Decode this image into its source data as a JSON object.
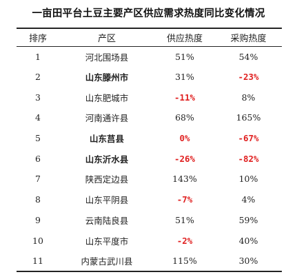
{
  "title": "一亩田平台土豆主要产区供应需求热度同比变化情况",
  "table": {
    "headers": [
      "排序",
      "产区",
      "供应热度",
      "采购热度"
    ],
    "rows": [
      {
        "rank": "1",
        "region": "河北围场县",
        "supply": "51%",
        "purchase": "54%",
        "region_bold": false,
        "supply_neg": false,
        "purchase_neg": false
      },
      {
        "rank": "2",
        "region": "山东滕州市",
        "supply": "31%",
        "purchase": "-23%",
        "region_bold": true,
        "supply_neg": false,
        "purchase_neg": true
      },
      {
        "rank": "3",
        "region": "山东肥城市",
        "supply": "-11%",
        "purchase": "8%",
        "region_bold": false,
        "supply_neg": true,
        "purchase_neg": false
      },
      {
        "rank": "4",
        "region": "河南通许县",
        "supply": "68%",
        "purchase": "165%",
        "region_bold": false,
        "supply_neg": false,
        "purchase_neg": false
      },
      {
        "rank": "5",
        "region": "山东莒县",
        "supply": "0%",
        "purchase": "-67%",
        "region_bold": true,
        "supply_neg": true,
        "purchase_neg": true
      },
      {
        "rank": "6",
        "region": "山东沂水县",
        "supply": "-26%",
        "purchase": "-82%",
        "region_bold": true,
        "supply_neg": true,
        "purchase_neg": true
      },
      {
        "rank": "7",
        "region": "陕西定边县",
        "supply": "143%",
        "purchase": "10%",
        "region_bold": false,
        "supply_neg": false,
        "purchase_neg": false
      },
      {
        "rank": "8",
        "region": "山东平阴县",
        "supply": "-7%",
        "purchase": "4%",
        "region_bold": false,
        "supply_neg": true,
        "purchase_neg": false
      },
      {
        "rank": "9",
        "region": "云南陆良县",
        "supply": "51%",
        "purchase": "59%",
        "region_bold": false,
        "supply_neg": false,
        "purchase_neg": false
      },
      {
        "rank": "10",
        "region": "山东平度市",
        "supply": "-2%",
        "purchase": "40%",
        "region_bold": false,
        "supply_neg": true,
        "purchase_neg": false
      },
      {
        "rank": "11",
        "region": "内蒙古武川县",
        "supply": "115%",
        "purchase": "30%",
        "region_bold": false,
        "supply_neg": false,
        "purchase_neg": false
      }
    ]
  },
  "colors": {
    "highlight_red": "#e02020",
    "text": "#222222",
    "rule": "#222222"
  }
}
